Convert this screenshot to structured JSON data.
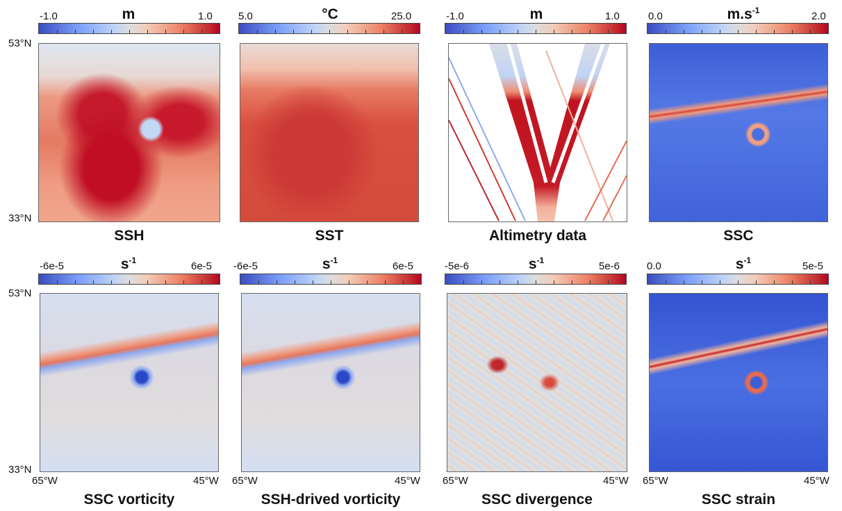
{
  "panels": [
    {
      "title": "SSH",
      "unit": "m",
      "unit_sup": "",
      "cmin": "-1.0",
      "cmax": "1.0"
    },
    {
      "title": "SST",
      "unit": "°C",
      "unit_sup": "",
      "cmin": "5.0",
      "cmax": "25.0"
    },
    {
      "title": "Altimetry data",
      "unit": "m",
      "unit_sup": "",
      "cmin": "-1.0",
      "cmax": "1.0"
    },
    {
      "title": "SSC",
      "unit": "m.s",
      "unit_sup": "-1",
      "cmin": "0.0",
      "cmax": "2.0"
    },
    {
      "title": "SSC vorticity",
      "unit": "s",
      "unit_sup": "-1",
      "cmin": "-6e-5",
      "cmax": "6e-5"
    },
    {
      "title": "SSH-drived vorticity",
      "unit": "s",
      "unit_sup": "-1",
      "cmin": "-6e-5",
      "cmax": "6e-5"
    },
    {
      "title": "SSC divergence",
      "unit": "s",
      "unit_sup": "-1",
      "cmin": "-5e-6",
      "cmax": "5e-6"
    },
    {
      "title": "SSC strain",
      "unit": "s",
      "unit_sup": "-1",
      "cmin": "0.0",
      "cmax": "5e-5"
    }
  ],
  "axes": {
    "lat_top": "53°N",
    "lat_bottom": "33°N",
    "lon_left": "65°W",
    "lon_right": "45°W"
  },
  "colormap": {
    "low": "#3b4cc0",
    "mid": "#dddddd",
    "high": "#b40426"
  }
}
